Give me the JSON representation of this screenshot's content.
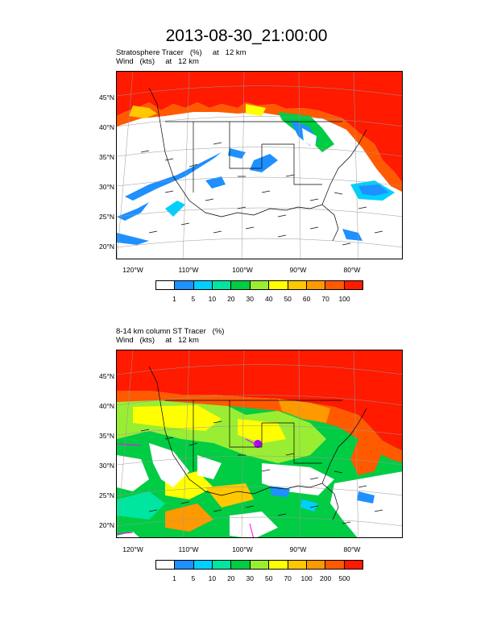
{
  "title": "2013-08-30_21:00:00",
  "panels": [
    {
      "label_line1": "Stratosphere Tracer   (%)     at   12 km",
      "label_line2": "Wind   (kts)     at   12 km",
      "lat_labels": [
        "45°N",
        "40°N",
        "35°N",
        "30°N",
        "25°N",
        "20°N"
      ],
      "lon_labels": [
        "120°W",
        "110°W",
        "100°W",
        "90°W",
        "80°W"
      ],
      "colorbar_labels": [
        "1",
        "5",
        "10",
        "20",
        "30",
        "40",
        "50",
        "60",
        "70",
        "100"
      ]
    },
    {
      "label_line1": "8-14 km column ST Tracer   (%)",
      "label_line2": "Wind   (kts)     at   12 km",
      "lat_labels": [
        "45°N",
        "40°N",
        "35°N",
        "30°N",
        "25°N",
        "20°N"
      ],
      "lon_labels": [
        "120°W",
        "110°W",
        "100°W",
        "90°W",
        "80°W"
      ],
      "colorbar_labels": [
        "1",
        "5",
        "10",
        "20",
        "30",
        "50",
        "70",
        "100",
        "200",
        "500"
      ]
    }
  ],
  "colorbar_colors": [
    "#ffffff",
    "#1e90ff",
    "#00d0ff",
    "#00e5a0",
    "#00cc44",
    "#99ee33",
    "#ffff00",
    "#ffc800",
    "#ff9900",
    "#ff5a00",
    "#ff1a00"
  ]
}
